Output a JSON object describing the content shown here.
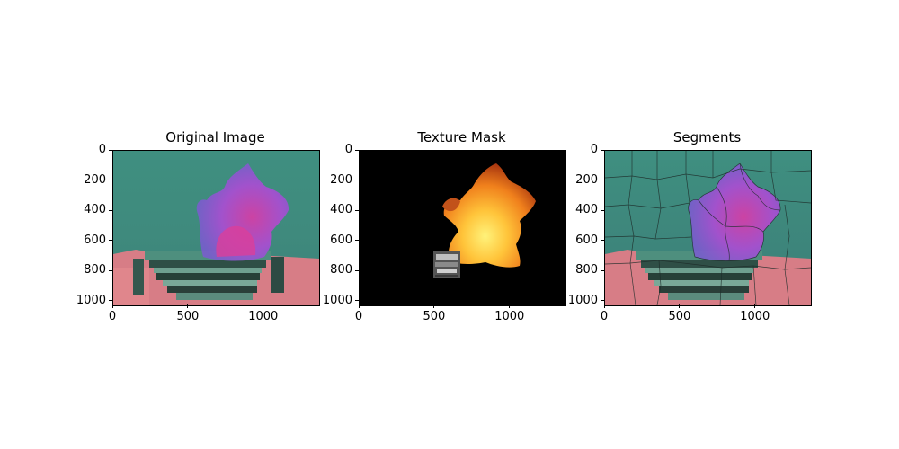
{
  "panels": [
    {
      "title": "Original Image",
      "x_ticks": [
        "0",
        "500",
        "1000"
      ],
      "y_ticks": [
        "0",
        "200",
        "400",
        "600",
        "800",
        "1000"
      ]
    },
    {
      "title": "Texture Mask",
      "x_ticks": [
        "0",
        "500",
        "1000"
      ],
      "y_ticks": [
        "0",
        "200",
        "400",
        "600",
        "800",
        "1000"
      ]
    },
    {
      "title": "Segments",
      "x_ticks": [
        "0",
        "500",
        "1000"
      ],
      "y_ticks": [
        "0",
        "200",
        "400",
        "600",
        "800",
        "1000"
      ]
    }
  ],
  "image_extent": {
    "width": 1365,
    "height": 1024
  },
  "colors": {
    "teal_background": "#3f8f80",
    "pink_foreground": "#d77d86",
    "magenta_plume": "#c93fb6",
    "violet_plume": "#8a52d8",
    "fire_orange": "#f08a1e",
    "fire_yellow": "#ffe24a",
    "mask_black": "#000000",
    "segment_lines": "#1e2d2a"
  }
}
